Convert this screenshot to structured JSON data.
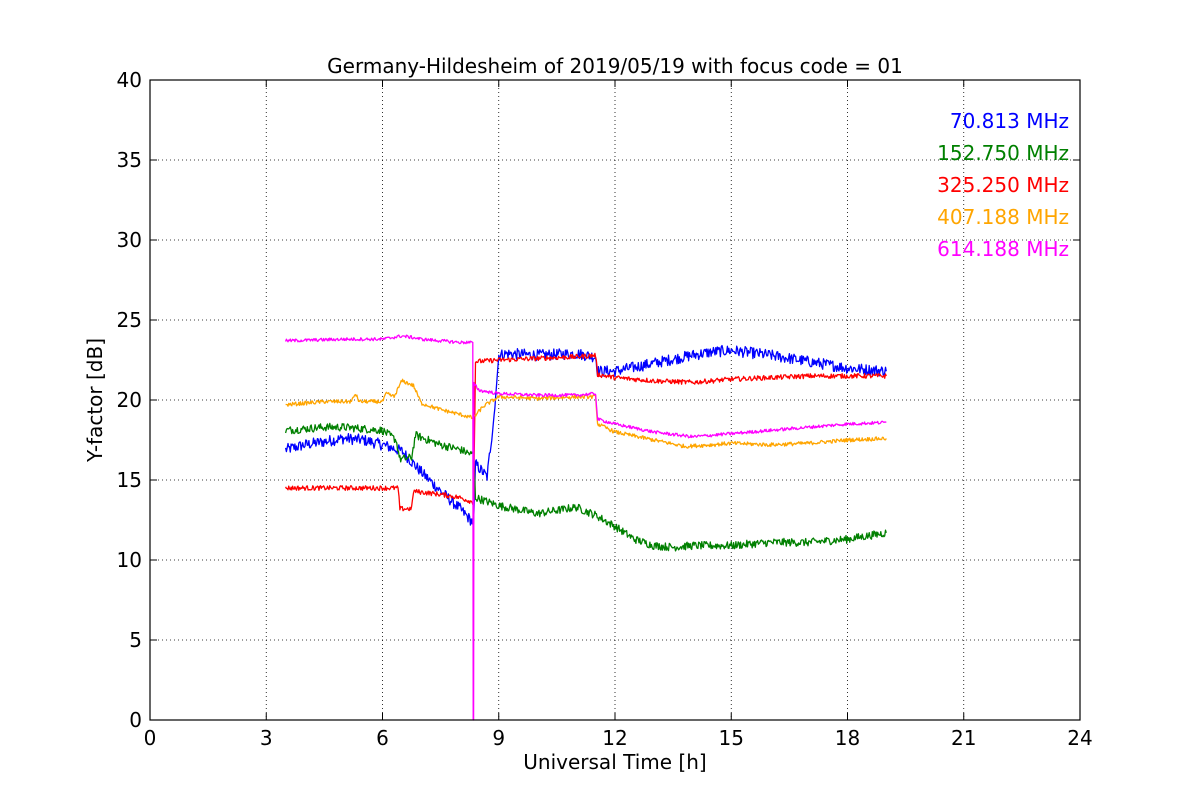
{
  "chart_data": {
    "type": "line",
    "title": "Germany-Hildesheim of 2019/05/19 with focus code = 01",
    "xlabel": "Universal Time [h]",
    "ylabel": "Y-factor [dB]",
    "xlim": [
      0,
      24
    ],
    "ylim": [
      0,
      40
    ],
    "xticks": [
      "0",
      "3",
      "6",
      "9",
      "12",
      "15",
      "18",
      "21",
      "24"
    ],
    "yticks": [
      "0",
      "5",
      "10",
      "15",
      "20",
      "25",
      "30",
      "35",
      "40"
    ],
    "grid": true,
    "legend_position": "top-right",
    "series": [
      {
        "name": "70.813 MHz",
        "color": "#0000ff",
        "noise": 0.35,
        "x": [
          3.5,
          4.0,
          5.0,
          5.5,
          6.0,
          6.5,
          7.0,
          7.5,
          8.0,
          8.35,
          8.4,
          8.7,
          8.9,
          9.0,
          9.2,
          10.0,
          11.0,
          11.5,
          11.55,
          12.0,
          13.0,
          14.0,
          14.5,
          15.0,
          16.0,
          17.0,
          18.0,
          19.0
        ],
        "y": [
          16.9,
          17.2,
          17.6,
          17.5,
          17.2,
          16.8,
          15.5,
          14.3,
          13.2,
          12.3,
          16.0,
          15.2,
          19.5,
          22.8,
          22.9,
          22.8,
          22.9,
          22.7,
          21.8,
          21.8,
          22.3,
          22.8,
          23.0,
          23.1,
          22.8,
          22.4,
          22.0,
          21.8
        ]
      },
      {
        "name": "152.750 MHz",
        "color": "#008000",
        "noise": 0.25,
        "x": [
          3.5,
          4.5,
          5.0,
          5.5,
          6.0,
          6.35,
          6.45,
          6.75,
          6.85,
          7.5,
          8.0,
          8.3,
          8.35,
          8.4,
          9.0,
          10.0,
          11.0,
          11.5,
          12.0,
          12.5,
          13.0,
          13.5,
          14.0,
          15.0,
          16.0,
          17.0,
          18.0,
          19.0
        ],
        "y": [
          18.1,
          18.3,
          18.3,
          18.2,
          18.1,
          17.5,
          16.3,
          16.4,
          17.8,
          17.2,
          16.9,
          16.6,
          16.6,
          13.9,
          13.4,
          12.9,
          13.3,
          12.8,
          12.1,
          11.3,
          10.9,
          10.8,
          10.9,
          10.9,
          11.1,
          11.1,
          11.3,
          11.7
        ]
      },
      {
        "name": "325.250 MHz",
        "color": "#ff0000",
        "noise": 0.15,
        "x": [
          3.5,
          6.4,
          6.45,
          6.75,
          6.8,
          7.5,
          8.0,
          8.35,
          8.4,
          9.0,
          10.0,
          11.0,
          11.5,
          11.55,
          12.0,
          13.0,
          14.0,
          15.0,
          16.0,
          17.0,
          18.0,
          19.0
        ],
        "y": [
          14.5,
          14.5,
          13.2,
          13.2,
          14.3,
          14.1,
          13.9,
          13.6,
          22.4,
          22.5,
          22.6,
          22.7,
          22.8,
          21.6,
          21.4,
          21.2,
          21.1,
          21.3,
          21.4,
          21.5,
          21.5,
          21.5
        ]
      },
      {
        "name": "407.188 MHz",
        "color": "#ffa500",
        "noise": 0.12,
        "x": [
          3.5,
          4.5,
          5.2,
          5.3,
          5.4,
          6.0,
          6.1,
          6.3,
          6.5,
          6.8,
          7.0,
          7.5,
          8.0,
          8.3,
          8.35,
          8.6,
          9.0,
          10.0,
          11.0,
          11.5,
          11.55,
          12.0,
          13.0,
          13.8,
          14.5,
          15.0,
          16.0,
          17.0,
          18.0,
          19.0
        ],
        "y": [
          19.7,
          19.9,
          19.9,
          20.4,
          19.9,
          19.9,
          20.4,
          20.2,
          21.2,
          20.9,
          19.8,
          19.4,
          19.1,
          18.9,
          18.9,
          19.6,
          20.2,
          20.1,
          20.2,
          20.2,
          18.5,
          18.0,
          17.5,
          17.1,
          17.2,
          17.3,
          17.2,
          17.3,
          17.5,
          17.6
        ]
      },
      {
        "name": "614.188 MHz",
        "color": "#ff00ff",
        "noise": 0.1,
        "x": [
          3.5,
          5.0,
          6.0,
          6.5,
          6.8,
          7.0,
          7.5,
          8.0,
          8.33,
          8.34,
          8.35,
          8.36,
          8.5,
          9.0,
          10.0,
          11.0,
          11.5,
          11.55,
          12.0,
          13.0,
          14.0,
          14.5,
          15.0,
          16.0,
          17.0,
          18.0,
          19.0
        ],
        "y": [
          23.7,
          23.8,
          23.8,
          24.0,
          23.9,
          23.8,
          23.7,
          23.6,
          23.6,
          0,
          0,
          21.0,
          20.6,
          20.4,
          20.3,
          20.3,
          20.4,
          18.8,
          18.5,
          18.0,
          17.7,
          17.8,
          17.9,
          18.1,
          18.3,
          18.5,
          18.6
        ]
      }
    ]
  }
}
